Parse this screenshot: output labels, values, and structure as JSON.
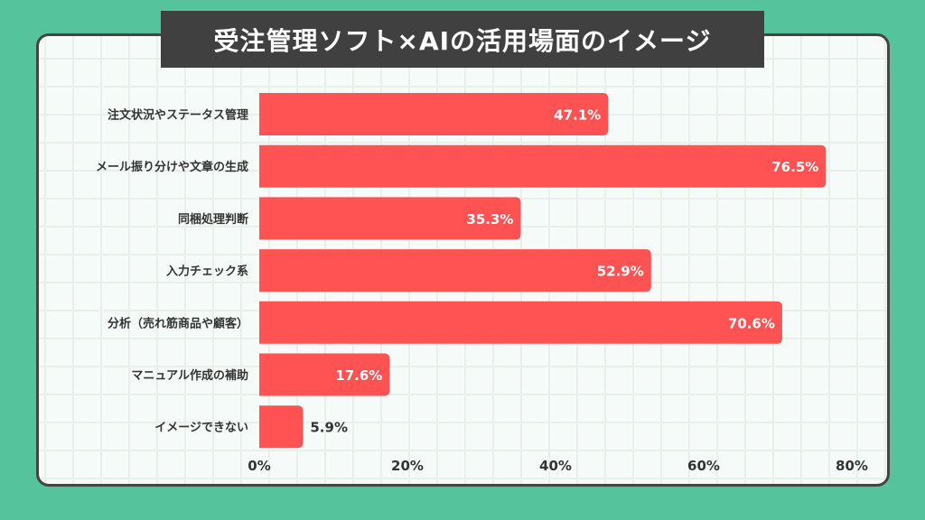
{
  "title": "受注管理ソフト×AIの活用場面のイメージ",
  "colors": {
    "background": "#55c49c",
    "bar": "#ff5252",
    "title_bg": "#404040"
  },
  "chart_data": {
    "type": "bar",
    "orientation": "horizontal",
    "title": "受注管理ソフト×AIの活用場面のイメージ",
    "categories": [
      "注文状況やステータス管理",
      "メール振り分けや文章の生成",
      "同梱処理判断",
      "入力チェック系",
      "分析（売れ筋商品や顧客）",
      "マニュアル作成の補助",
      "イメージできない"
    ],
    "values": [
      47.1,
      76.5,
      35.3,
      52.9,
      70.6,
      17.6,
      5.9
    ],
    "value_labels": [
      "47.1%",
      "76.5%",
      "35.3%",
      "52.9%",
      "70.6%",
      "17.6%",
      "5.9%"
    ],
    "xlim": [
      0,
      80
    ],
    "xticks": [
      "0%",
      "20%",
      "40%",
      "60%",
      "80%"
    ],
    "xlabel": "",
    "ylabel": "",
    "grid": true
  }
}
